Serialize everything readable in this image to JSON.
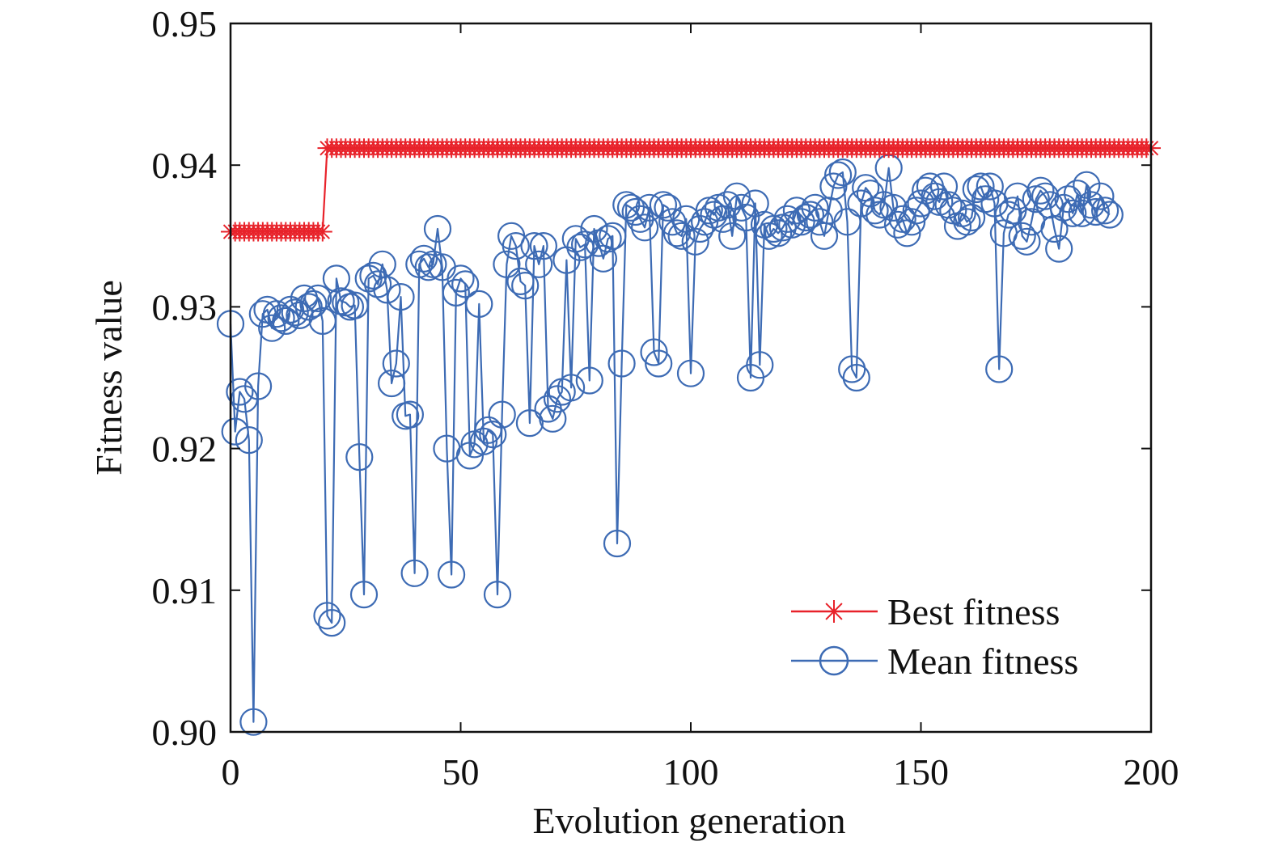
{
  "chart_data": {
    "type": "line",
    "title": "",
    "xlabel": "Evolution generation",
    "ylabel": "Fitness value",
    "xlim": [
      0,
      200
    ],
    "ylim": [
      0.9,
      0.95
    ],
    "xticks": [
      "0",
      "50",
      "100",
      "150",
      "200"
    ],
    "yticks": [
      "0.90",
      "0.91",
      "0.92",
      "0.93",
      "0.94",
      "0.95"
    ],
    "grid": false,
    "legend_position": "bottom-right",
    "series": [
      {
        "name": "Best fitness",
        "color": "#e8222a",
        "marker": "asterisk",
        "segments": [
          {
            "x_from": 0,
            "x_to": 20,
            "y": 0.9353
          },
          {
            "x_from": 21,
            "x_to": 200,
            "y": 0.9412
          }
        ]
      },
      {
        "name": "Mean fitness",
        "color": "#3d6bb4",
        "marker": "circle",
        "x_start": 0,
        "values": [
          0.9288,
          0.9212,
          0.924,
          0.9235,
          0.9206,
          0.9007,
          0.9244,
          0.9295,
          0.9298,
          0.9285,
          0.9295,
          0.9292,
          0.929,
          0.9298,
          0.9296,
          0.9294,
          0.9306,
          0.93,
          0.9302,
          0.9306,
          0.929,
          0.9082,
          0.9077,
          0.932,
          0.9304,
          0.9303,
          0.93,
          0.9301,
          0.9194,
          0.9097,
          0.932,
          0.9322,
          0.9316,
          0.933,
          0.9312,
          0.9246,
          0.926,
          0.9307,
          0.9223,
          0.9224,
          0.9112,
          0.933,
          0.9334,
          0.9328,
          0.933,
          0.9355,
          0.9328,
          0.92,
          0.9111,
          0.931,
          0.932,
          0.9316,
          0.9195,
          0.9203,
          0.9302,
          0.9205,
          0.9213,
          0.921,
          0.9097,
          0.9224,
          0.933,
          0.935,
          0.9343,
          0.9318,
          0.9315,
          0.9218,
          0.9343,
          0.933,
          0.9343,
          0.9228,
          0.9221,
          0.9235,
          0.924,
          0.9333,
          0.9243,
          0.9348,
          0.9342,
          0.9344,
          0.9248,
          0.9355,
          0.9345,
          0.9334,
          0.9348,
          0.935,
          0.9133,
          0.926,
          0.9372,
          0.937,
          0.9367,
          0.9362,
          0.9356,
          0.937,
          0.9268,
          0.926,
          0.9372,
          0.937,
          0.936,
          0.9352,
          0.935,
          0.9362,
          0.9253,
          0.9346,
          0.9355,
          0.936,
          0.9368,
          0.9365,
          0.937,
          0.9362,
          0.9372,
          0.935,
          0.9378,
          0.937,
          0.9363,
          0.925,
          0.9373,
          0.9259,
          0.9358,
          0.935,
          0.9355,
          0.9352,
          0.9356,
          0.9362,
          0.9358,
          0.9368,
          0.936,
          0.9363,
          0.9365,
          0.937,
          0.936,
          0.935,
          0.9368,
          0.9385,
          0.9393,
          0.9395,
          0.936,
          0.9256,
          0.925,
          0.9373,
          0.9384,
          0.938,
          0.9368,
          0.9365,
          0.9372,
          0.9398,
          0.937,
          0.9358,
          0.9362,
          0.9352,
          0.936,
          0.9368,
          0.9373,
          0.9382,
          0.9385,
          0.9378,
          0.9374,
          0.9385,
          0.9372,
          0.9368,
          0.9357,
          0.9366,
          0.936,
          0.9363,
          0.9383,
          0.9385,
          0.9376,
          0.9385,
          0.9373,
          0.9256,
          0.9352,
          0.9365,
          0.9368,
          0.9378,
          0.935,
          0.9346,
          0.936,
          0.9376,
          0.9382,
          0.9378,
          0.9372,
          0.9355,
          0.9341,
          0.937,
          0.9376,
          0.9366,
          0.938,
          0.9366,
          0.9386,
          0.9372,
          0.9367,
          0.9378,
          0.9368,
          0.9365
        ]
      }
    ]
  }
}
